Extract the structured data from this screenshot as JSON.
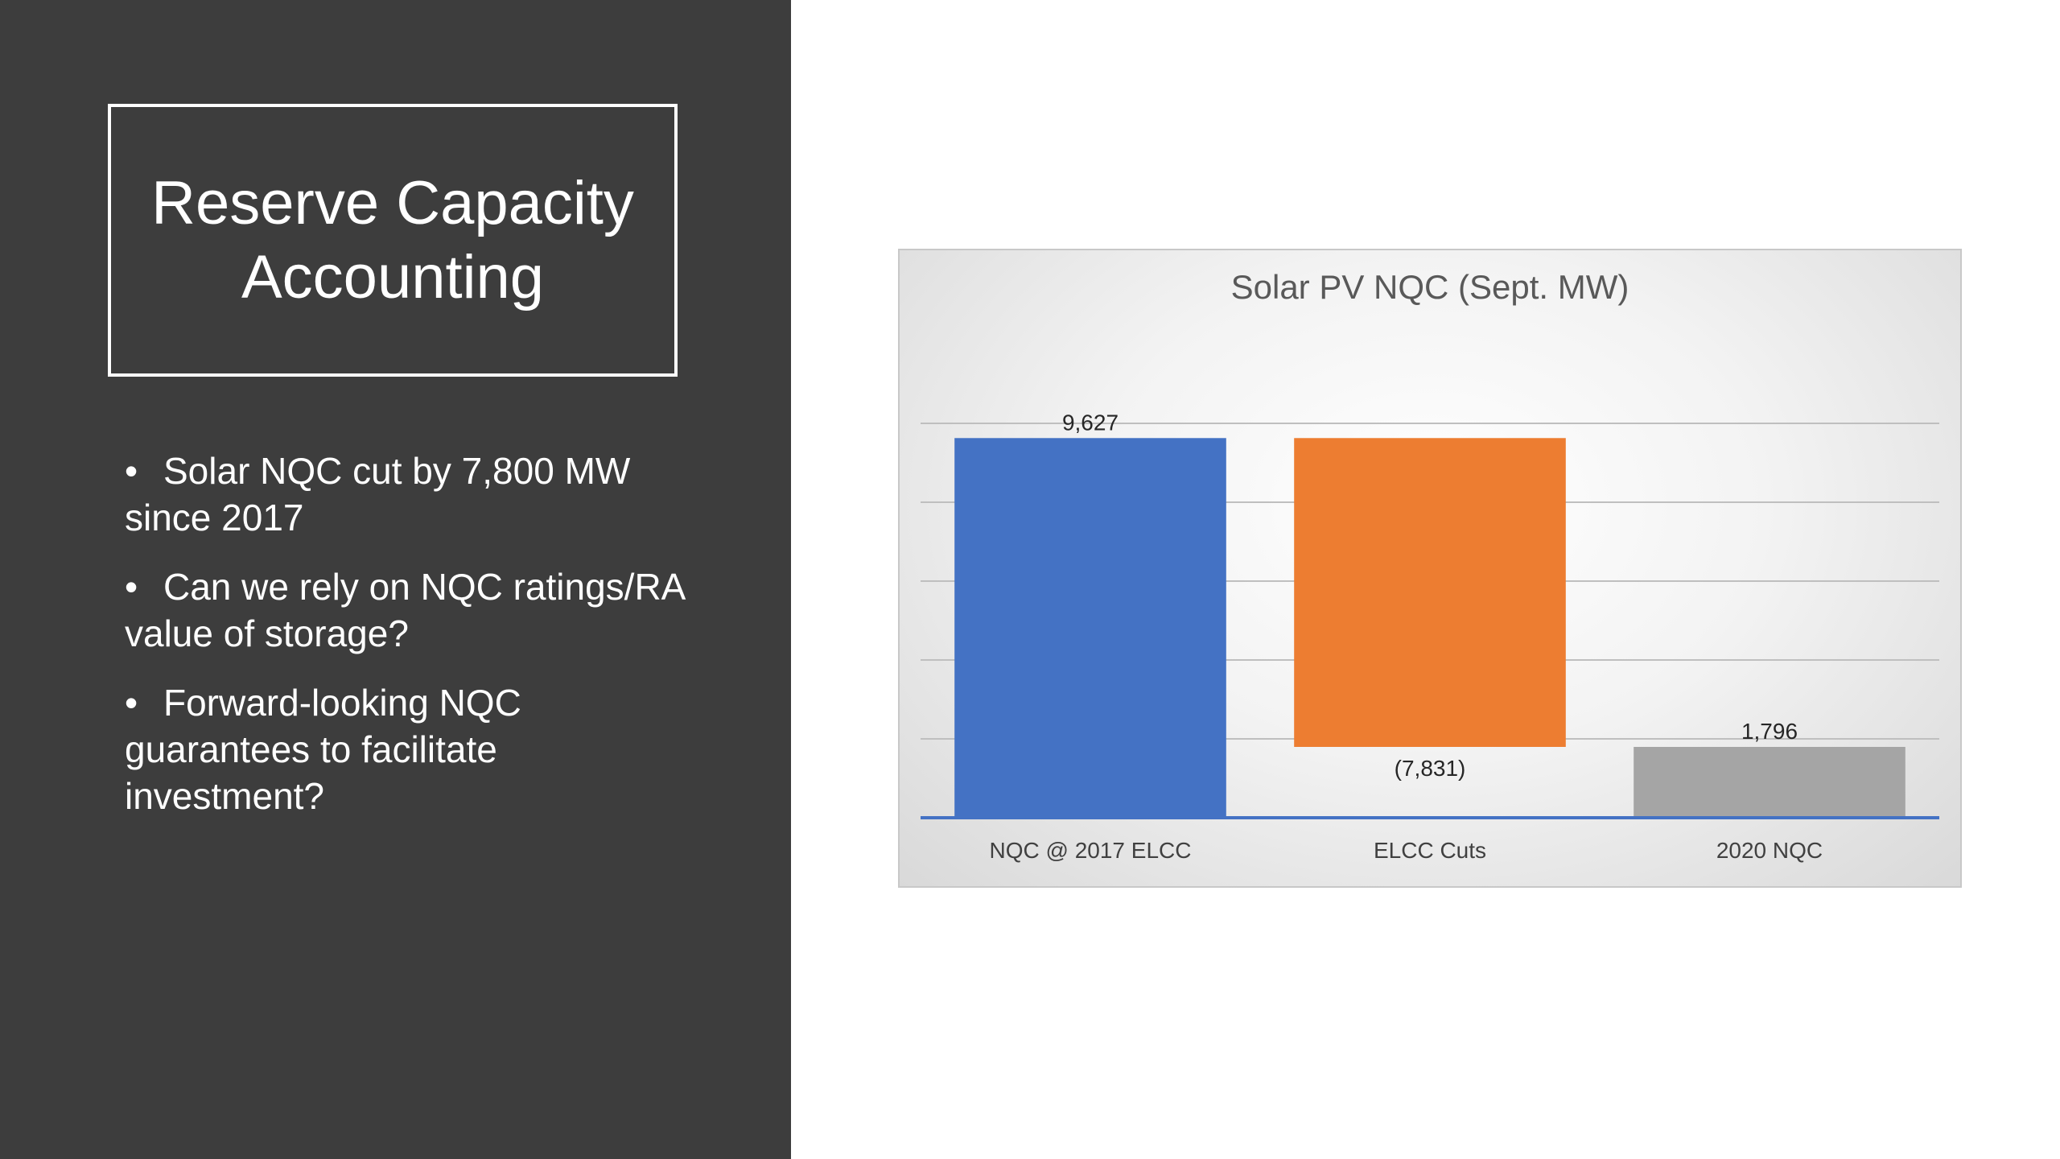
{
  "slide": {
    "title": "Reserve Capacity Accounting",
    "bullets": [
      "Solar NQC cut by 7,800 MW since 2017",
      "Can we rely on NQC ratings/RA value of storage?",
      "Forward-looking NQC guarantees to facilitate investment?"
    ]
  },
  "chart_data": {
    "type": "bar",
    "subtype": "waterfall",
    "title": "Solar PV NQC (Sept. MW)",
    "categories": [
      "NQC @ 2017 ELCC",
      "ELCC Cuts",
      "2020 NQC"
    ],
    "values": [
      9627,
      -7831,
      1796
    ],
    "data_labels": [
      "9,627",
      "(7,831)",
      "1,796"
    ],
    "colors": [
      "#4472c4",
      "#ed7d31",
      "#a5a5a5"
    ],
    "ylim": [
      0,
      10000
    ],
    "ytick_step": 2000,
    "grid": true,
    "legend": "none",
    "xlabel": "",
    "ylabel": ""
  }
}
